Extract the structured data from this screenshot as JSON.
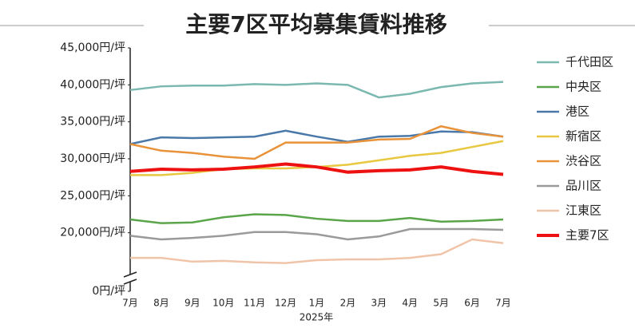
{
  "chart_data": {
    "type": "line",
    "title": "主要7区平均募集賃料推移",
    "x_label": "2025年",
    "categories": [
      "7月",
      "8月",
      "9月",
      "10月",
      "11月",
      "12月",
      "1月",
      "2月",
      "3月",
      "4月",
      "5月",
      "6月",
      "7月"
    ],
    "ylim": [
      0,
      45000
    ],
    "axis_break": [
      0,
      15000
    ],
    "yticks": [
      {
        "value": 0,
        "label": "0円/坪"
      },
      {
        "value": 20000,
        "label": "20,000円/坪"
      },
      {
        "value": 25000,
        "label": "25,000円/坪"
      },
      {
        "value": 30000,
        "label": "30,000円/坪"
      },
      {
        "value": 35000,
        "label": "35,000円/坪"
      },
      {
        "value": 40000,
        "label": "40,000円/坪"
      },
      {
        "value": 45000,
        "label": "45,000円/坪"
      }
    ],
    "grid": false,
    "legend": "right",
    "series": [
      {
        "name": "千代田区",
        "color": "#7ab8b0",
        "values": [
          39300,
          39800,
          39900,
          39900,
          40100,
          40000,
          40200,
          40000,
          38300,
          38800,
          39700,
          40200,
          40400
        ]
      },
      {
        "name": "中央区",
        "color": "#5aa54a",
        "values": [
          21800,
          21300,
          21400,
          22100,
          22500,
          22400,
          21900,
          21600,
          21600,
          22000,
          21500,
          21600,
          21800
        ]
      },
      {
        "name": "港区",
        "color": "#4a78a8",
        "values": [
          32000,
          32900,
          32800,
          32900,
          33000,
          33800,
          33000,
          32300,
          33000,
          33100,
          33700,
          33600,
          33000
        ]
      },
      {
        "name": "新宿区",
        "color": "#e8c840",
        "values": [
          27800,
          27800,
          28100,
          28600,
          28700,
          28700,
          28900,
          29200,
          29800,
          30400,
          30800,
          31600,
          32400
        ]
      },
      {
        "name": "渋谷区",
        "color": "#e8923a",
        "values": [
          32000,
          31100,
          30800,
          30300,
          30000,
          32200,
          32200,
          32200,
          32600,
          32700,
          34400,
          33500,
          33000
        ]
      },
      {
        "name": "品川区",
        "color": "#9a9a9a",
        "values": [
          19600,
          19100,
          19300,
          19600,
          20100,
          20100,
          19800,
          19100,
          19500,
          20500,
          20500,
          20500,
          20400
        ]
      },
      {
        "name": "江東区",
        "color": "#f0c4a8",
        "values": [
          16600,
          16600,
          16100,
          16200,
          16000,
          15900,
          16300,
          16400,
          16400,
          16600,
          17100,
          19100,
          18600
        ]
      },
      {
        "name": "主要7区",
        "color": "#ee1111",
        "values": [
          28300,
          28600,
          28500,
          28600,
          28900,
          29300,
          28900,
          28200,
          28400,
          28500,
          28900,
          28300,
          27900
        ]
      }
    ]
  }
}
